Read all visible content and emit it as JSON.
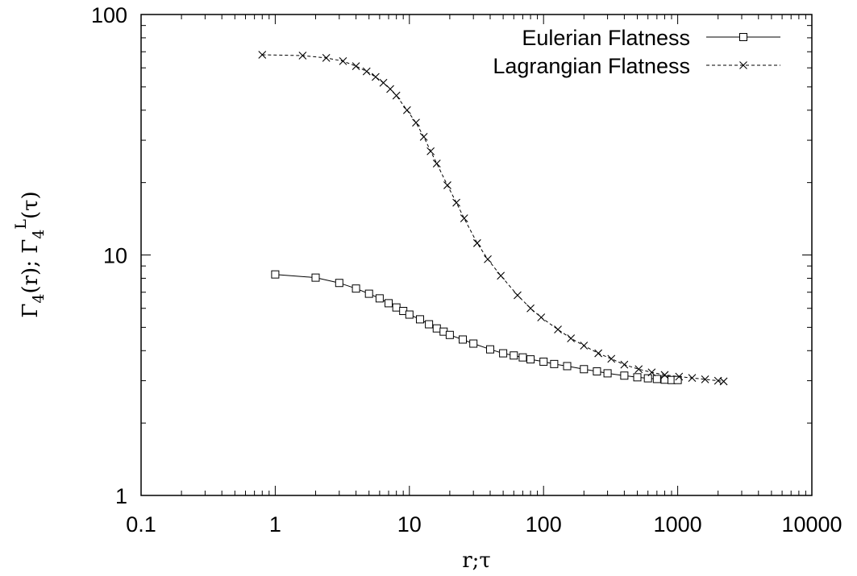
{
  "chart_data": {
    "type": "line",
    "x_scale": "log",
    "y_scale": "log",
    "xlim": [
      0.1,
      10000
    ],
    "ylim": [
      1,
      100
    ],
    "x_ticks": [
      "0.1",
      "1",
      "10",
      "100",
      "1000",
      "10000"
    ],
    "y_ticks": [
      "1",
      "10",
      "100"
    ],
    "xlabel": "r;τ",
    "ylabel": "Γ4(r); Γ4L(τ)",
    "grid": false,
    "legend_position": "top-right",
    "series": [
      {
        "name": "Eulerian Flatness",
        "line_style": "solid",
        "marker": "square",
        "x": [
          1,
          2,
          3,
          4,
          5,
          6,
          7,
          8,
          9,
          10,
          12,
          14,
          16,
          18,
          20,
          25,
          30,
          40,
          50,
          60,
          70,
          80,
          100,
          120,
          150,
          200,
          250,
          300,
          400,
          500,
          600,
          700,
          800,
          900,
          1000
        ],
        "values": [
          8.3,
          8.05,
          7.65,
          7.25,
          6.9,
          6.6,
          6.3,
          6.05,
          5.85,
          5.65,
          5.4,
          5.15,
          4.95,
          4.8,
          4.65,
          4.45,
          4.28,
          4.05,
          3.9,
          3.82,
          3.75,
          3.68,
          3.6,
          3.52,
          3.45,
          3.35,
          3.28,
          3.22,
          3.15,
          3.1,
          3.07,
          3.05,
          3.03,
          3.02,
          3.02
        ]
      },
      {
        "name": "Lagrangian Flatness",
        "line_style": "dashed",
        "marker": "cross",
        "x": [
          0.8,
          1.6,
          2.4,
          3.2,
          4.0,
          4.8,
          5.6,
          6.4,
          7.2,
          8.0,
          9.6,
          11.2,
          12.8,
          14.4,
          16,
          19.2,
          22.4,
          25.6,
          32,
          38.4,
          48,
          64,
          80,
          96,
          128,
          160,
          200,
          256,
          320,
          400,
          512,
          640,
          800,
          1024,
          1280,
          1600,
          2000,
          2200
        ],
        "values": [
          68,
          67.5,
          66,
          64,
          61,
          58,
          55,
          52,
          49,
          46,
          40,
          35.5,
          31,
          27,
          24,
          19.5,
          16.5,
          14.2,
          11.2,
          9.6,
          8.2,
          6.8,
          6.0,
          5.5,
          4.9,
          4.5,
          4.2,
          3.9,
          3.7,
          3.5,
          3.35,
          3.25,
          3.17,
          3.12,
          3.08,
          3.04,
          3.0,
          2.98
        ]
      }
    ]
  }
}
